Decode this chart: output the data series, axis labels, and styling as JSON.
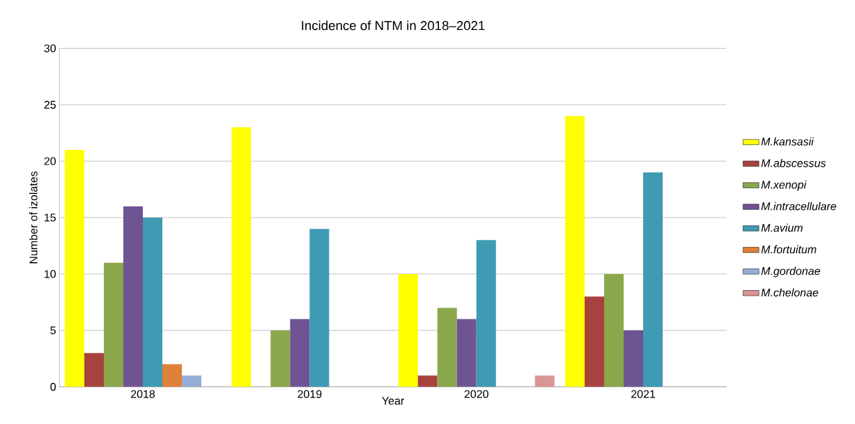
{
  "chart_data": {
    "type": "bar",
    "title": "Incidence of NTM in 2018–2021",
    "xlabel": "Year",
    "ylabel": "Number of izolates",
    "categories": [
      "2018",
      "2019",
      "2020",
      "2021"
    ],
    "series": [
      {
        "name": "M.kansasii",
        "color": "#ffff00",
        "values": [
          21,
          23,
          10,
          24
        ]
      },
      {
        "name": "M.abscessus",
        "color": "#a8423f",
        "values": [
          3,
          null,
          1,
          8
        ]
      },
      {
        "name": "M.xenopi",
        "color": "#8aa84b",
        "values": [
          11,
          5,
          7,
          10
        ]
      },
      {
        "name": "M.intracellulare",
        "color": "#6f5494",
        "values": [
          16,
          6,
          6,
          5
        ]
      },
      {
        "name": "M.avium",
        "color": "#3f9ab3",
        "values": [
          15,
          14,
          13,
          19
        ]
      },
      {
        "name": "M.fortuitum",
        "color": "#e0803a",
        "values": [
          2,
          null,
          null,
          null
        ]
      },
      {
        "name": "M.gordonae",
        "color": "#95add6",
        "values": [
          1,
          null,
          null,
          null
        ]
      },
      {
        "name": "M.chelonae",
        "color": "#d99694",
        "values": [
          null,
          null,
          1,
          null
        ]
      }
    ],
    "ylim": [
      0,
      30
    ],
    "yticks": [
      0,
      5,
      10,
      15,
      20,
      25,
      30
    ],
    "grid": "y",
    "legend": "right"
  }
}
